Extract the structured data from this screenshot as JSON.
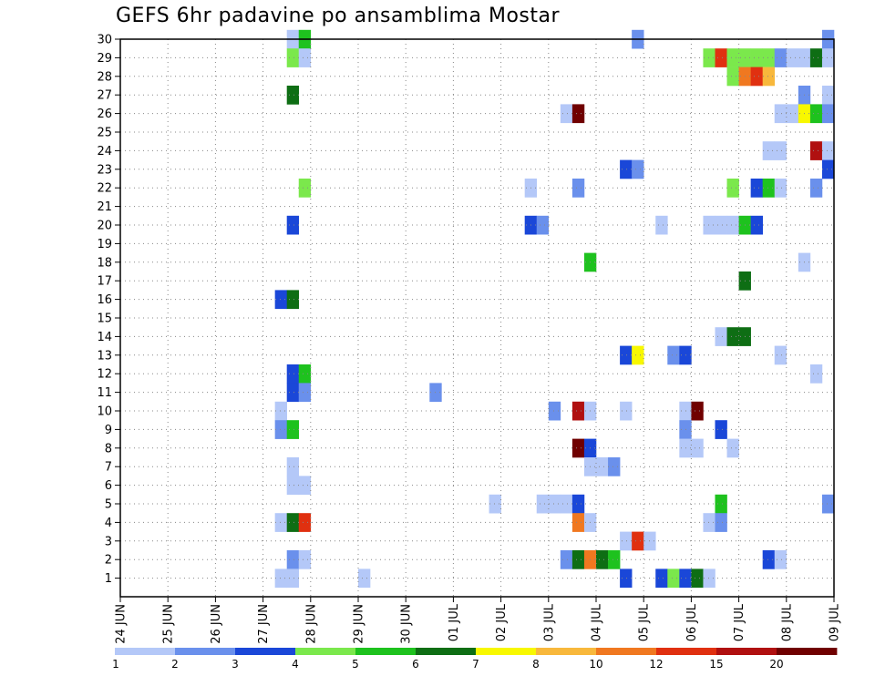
{
  "chart_data": {
    "type": "heatmap",
    "title": "GEFS 6hr padavine po ansamblima Mostar",
    "xlabel": "",
    "ylabel": "",
    "x_ticks": [
      "24 JUN",
      "25 JUN",
      "26 JUN",
      "27 JUN",
      "28 JUN",
      "29 JUN",
      "30 JUN",
      "01 JUL",
      "02 JUL",
      "03 JUL",
      "04 JUL",
      "05 JUL",
      "06 JUL",
      "07 JUL",
      "08 JUL",
      "09 JUL"
    ],
    "y_ticks": [
      "1",
      "2",
      "3",
      "4",
      "5",
      "6",
      "7",
      "8",
      "9",
      "10",
      "11",
      "12",
      "13",
      "14",
      "15",
      "16",
      "17",
      "18",
      "19",
      "20",
      "21",
      "22",
      "23",
      "24",
      "25",
      "26",
      "27",
      "28",
      "29",
      "30"
    ],
    "x_range_days": [
      0,
      15
    ],
    "y_range": [
      0,
      30
    ],
    "grid": true,
    "colorbar": {
      "boundaries": [
        "1",
        "2",
        "3",
        "4",
        "5",
        "6",
        "7",
        "8",
        "10",
        "12",
        "15",
        "20"
      ],
      "colors": [
        "#b4c8f8",
        "#6a90ec",
        "#1a47d8",
        "#7be84c",
        "#1ec21e",
        "#0e6e14",
        "#f8f800",
        "#f8b83c",
        "#f07820",
        "#e03010",
        "#b01010",
        "#700000"
      ]
    },
    "cells": [
      {
        "d": 3.5,
        "m": 30,
        "c": 1
      },
      {
        "d": 3.75,
        "m": 30,
        "c": 5
      },
      {
        "d": 10.75,
        "m": 30,
        "c": 2
      },
      {
        "d": 14.75,
        "m": 30,
        "c": 2
      },
      {
        "d": 3.5,
        "m": 29,
        "c": 4
      },
      {
        "d": 3.75,
        "m": 29,
        "c": 1
      },
      {
        "d": 12.25,
        "m": 29,
        "c": 4
      },
      {
        "d": 12.5,
        "m": 29,
        "c": 10
      },
      {
        "d": 12.75,
        "m": 29,
        "c": 4
      },
      {
        "d": 13.0,
        "m": 29,
        "c": 4
      },
      {
        "d": 13.25,
        "m": 29,
        "c": 4
      },
      {
        "d": 13.5,
        "m": 29,
        "c": 4
      },
      {
        "d": 13.75,
        "m": 29,
        "c": 2
      },
      {
        "d": 14.0,
        "m": 29,
        "c": 1
      },
      {
        "d": 14.25,
        "m": 29,
        "c": 1
      },
      {
        "d": 14.5,
        "m": 29,
        "c": 6
      },
      {
        "d": 14.75,
        "m": 29,
        "c": 1
      },
      {
        "d": 12.75,
        "m": 28,
        "c": 4
      },
      {
        "d": 13.0,
        "m": 28,
        "c": 9
      },
      {
        "d": 13.25,
        "m": 28,
        "c": 10
      },
      {
        "d": 13.5,
        "m": 28,
        "c": 8
      },
      {
        "d": 3.5,
        "m": 27,
        "c": 6
      },
      {
        "d": 14.25,
        "m": 27,
        "c": 2
      },
      {
        "d": 14.75,
        "m": 27,
        "c": 1
      },
      {
        "d": 9.25,
        "m": 26,
        "c": 1
      },
      {
        "d": 9.5,
        "m": 26,
        "c": 12
      },
      {
        "d": 13.75,
        "m": 26,
        "c": 1
      },
      {
        "d": 14.0,
        "m": 26,
        "c": 1
      },
      {
        "d": 14.25,
        "m": 26,
        "c": 7
      },
      {
        "d": 14.5,
        "m": 26,
        "c": 5
      },
      {
        "d": 14.75,
        "m": 26,
        "c": 2
      },
      {
        "d": 13.5,
        "m": 24,
        "c": 1
      },
      {
        "d": 13.75,
        "m": 24,
        "c": 1
      },
      {
        "d": 14.5,
        "m": 24,
        "c": 11
      },
      {
        "d": 14.75,
        "m": 24,
        "c": 1
      },
      {
        "d": 10.5,
        "m": 23,
        "c": 3
      },
      {
        "d": 10.75,
        "m": 23,
        "c": 2
      },
      {
        "d": 14.75,
        "m": 23,
        "c": 3
      },
      {
        "d": 3.75,
        "m": 22,
        "c": 4
      },
      {
        "d": 8.5,
        "m": 22,
        "c": 1
      },
      {
        "d": 9.5,
        "m": 22,
        "c": 2
      },
      {
        "d": 12.75,
        "m": 22,
        "c": 4
      },
      {
        "d": 13.25,
        "m": 22,
        "c": 3
      },
      {
        "d": 13.5,
        "m": 22,
        "c": 5
      },
      {
        "d": 13.75,
        "m": 22,
        "c": 1
      },
      {
        "d": 14.5,
        "m": 22,
        "c": 2
      },
      {
        "d": 3.5,
        "m": 20,
        "c": 3
      },
      {
        "d": 8.5,
        "m": 20,
        "c": 3
      },
      {
        "d": 8.75,
        "m": 20,
        "c": 2
      },
      {
        "d": 11.25,
        "m": 20,
        "c": 1
      },
      {
        "d": 12.25,
        "m": 20,
        "c": 1
      },
      {
        "d": 12.5,
        "m": 20,
        "c": 1
      },
      {
        "d": 12.75,
        "m": 20,
        "c": 1
      },
      {
        "d": 13.0,
        "m": 20,
        "c": 5
      },
      {
        "d": 13.25,
        "m": 20,
        "c": 3
      },
      {
        "d": 9.75,
        "m": 18,
        "c": 5
      },
      {
        "d": 14.25,
        "m": 18,
        "c": 1
      },
      {
        "d": 13.0,
        "m": 17,
        "c": 6
      },
      {
        "d": 3.25,
        "m": 16,
        "c": 3
      },
      {
        "d": 3.5,
        "m": 16,
        "c": 6
      },
      {
        "d": 12.5,
        "m": 14,
        "c": 1
      },
      {
        "d": 12.75,
        "m": 14,
        "c": 6
      },
      {
        "d": 13.0,
        "m": 14,
        "c": 6
      },
      {
        "d": 10.5,
        "m": 13,
        "c": 3
      },
      {
        "d": 10.75,
        "m": 13,
        "c": 7
      },
      {
        "d": 11.5,
        "m": 13,
        "c": 2
      },
      {
        "d": 11.75,
        "m": 13,
        "c": 3
      },
      {
        "d": 13.75,
        "m": 13,
        "c": 1
      },
      {
        "d": 3.5,
        "m": 12,
        "c": 3
      },
      {
        "d": 3.75,
        "m": 12,
        "c": 5
      },
      {
        "d": 14.5,
        "m": 12,
        "c": 1
      },
      {
        "d": 3.5,
        "m": 11,
        "c": 3
      },
      {
        "d": 3.75,
        "m": 11,
        "c": 2
      },
      {
        "d": 6.5,
        "m": 11,
        "c": 2
      },
      {
        "d": 3.25,
        "m": 10,
        "c": 1
      },
      {
        "d": 9.0,
        "m": 10,
        "c": 2
      },
      {
        "d": 9.5,
        "m": 10,
        "c": 11
      },
      {
        "d": 9.75,
        "m": 10,
        "c": 1
      },
      {
        "d": 10.5,
        "m": 10,
        "c": 1
      },
      {
        "d": 11.75,
        "m": 10,
        "c": 1
      },
      {
        "d": 12.0,
        "m": 10,
        "c": 12
      },
      {
        "d": 3.25,
        "m": 9,
        "c": 2
      },
      {
        "d": 3.5,
        "m": 9,
        "c": 5
      },
      {
        "d": 11.75,
        "m": 9,
        "c": 2
      },
      {
        "d": 12.5,
        "m": 9,
        "c": 3
      },
      {
        "d": 9.5,
        "m": 8,
        "c": 12
      },
      {
        "d": 9.75,
        "m": 8,
        "c": 3
      },
      {
        "d": 11.75,
        "m": 8,
        "c": 1
      },
      {
        "d": 12.0,
        "m": 8,
        "c": 1
      },
      {
        "d": 12.75,
        "m": 8,
        "c": 1
      },
      {
        "d": 3.5,
        "m": 7,
        "c": 1
      },
      {
        "d": 9.75,
        "m": 7,
        "c": 1
      },
      {
        "d": 10.0,
        "m": 7,
        "c": 1
      },
      {
        "d": 10.25,
        "m": 7,
        "c": 2
      },
      {
        "d": 3.5,
        "m": 6,
        "c": 1
      },
      {
        "d": 3.75,
        "m": 6,
        "c": 1
      },
      {
        "d": 7.75,
        "m": 5,
        "c": 1
      },
      {
        "d": 8.75,
        "m": 5,
        "c": 1
      },
      {
        "d": 9.0,
        "m": 5,
        "c": 1
      },
      {
        "d": 9.25,
        "m": 5,
        "c": 1
      },
      {
        "d": 9.5,
        "m": 5,
        "c": 3
      },
      {
        "d": 12.5,
        "m": 5,
        "c": 5
      },
      {
        "d": 14.75,
        "m": 5,
        "c": 2
      },
      {
        "d": 3.25,
        "m": 4,
        "c": 1
      },
      {
        "d": 3.5,
        "m": 4,
        "c": 6
      },
      {
        "d": 3.75,
        "m": 4,
        "c": 10
      },
      {
        "d": 9.5,
        "m": 4,
        "c": 9
      },
      {
        "d": 9.75,
        "m": 4,
        "c": 1
      },
      {
        "d": 12.25,
        "m": 4,
        "c": 1
      },
      {
        "d": 12.5,
        "m": 4,
        "c": 2
      },
      {
        "d": 10.5,
        "m": 3,
        "c": 1
      },
      {
        "d": 10.75,
        "m": 3,
        "c": 10
      },
      {
        "d": 11.0,
        "m": 3,
        "c": 1
      },
      {
        "d": 3.5,
        "m": 2,
        "c": 2
      },
      {
        "d": 3.75,
        "m": 2,
        "c": 1
      },
      {
        "d": 9.25,
        "m": 2,
        "c": 2
      },
      {
        "d": 9.5,
        "m": 2,
        "c": 6
      },
      {
        "d": 9.75,
        "m": 2,
        "c": 9
      },
      {
        "d": 10.0,
        "m": 2,
        "c": 6
      },
      {
        "d": 10.25,
        "m": 2,
        "c": 5
      },
      {
        "d": 13.5,
        "m": 2,
        "c": 3
      },
      {
        "d": 13.75,
        "m": 2,
        "c": 1
      },
      {
        "d": 3.25,
        "m": 1,
        "c": 1
      },
      {
        "d": 3.5,
        "m": 1,
        "c": 1
      },
      {
        "d": 5.0,
        "m": 1,
        "c": 1
      },
      {
        "d": 10.5,
        "m": 1,
        "c": 3
      },
      {
        "d": 11.25,
        "m": 1,
        "c": 3
      },
      {
        "d": 11.5,
        "m": 1,
        "c": 4
      },
      {
        "d": 11.75,
        "m": 1,
        "c": 3
      },
      {
        "d": 12.0,
        "m": 1,
        "c": 6
      },
      {
        "d": 12.25,
        "m": 1,
        "c": 1
      }
    ]
  }
}
